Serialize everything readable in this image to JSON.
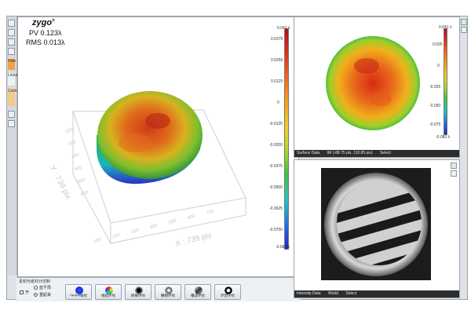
{
  "left_view": {
    "logo": "zygo",
    "pv_label": "PV 0.123λ",
    "rms_label": "RMS 0.013λ",
    "scale_labels": [
      "0.041 λ",
      "0.0375",
      "0.0250",
      "0.0125",
      "0",
      "-0.0125",
      "-0.0250",
      "-0.0375",
      "-0.0500",
      "-0.0625",
      "-0.0750",
      "-0.082 λ"
    ],
    "x_axis_label": "X : 739 pix",
    "y_axis_label": "Y : 739 pix",
    "x_ticks": [
      "100",
      "200",
      "300",
      "400",
      "500",
      "600",
      "700"
    ],
    "y_ticks": [
      "100",
      "200",
      "300",
      "400",
      "500",
      "600"
    ]
  },
  "surface_view": {
    "scale_labels": [
      "0.041 λ",
      "0.025",
      "0",
      "-0.025",
      "-0.050",
      "-0.075",
      "-0.082 λ"
    ],
    "status": {
      "name": "Surface Data",
      "coords": "Wi (-88.75 pix, 110.85 pix)",
      "mode": "Select"
    }
  },
  "intensity_view": {
    "status": {
      "name": "Intensity Data",
      "world": "World",
      "mode": "Select"
    }
  },
  "controls": {
    "title": "素积光纸材计控制",
    "checkbox_label": "开",
    "radio_options": [
      "蓝千周",
      "重起来"
    ],
    "buttons": [
      "*ΨΨΨ样纹",
      "线结环纹",
      "刷果环纹",
      "撒数环纹",
      "槽波环纹",
      "环塑环纹"
    ]
  },
  "toolstrip": {
    "items": [
      "Hide",
      "Linear",
      "Contour"
    ]
  },
  "colors": {
    "status_bar": "#2d2d2d",
    "scale_top": "#b01010",
    "scale_bottom": "#2a1ecc"
  }
}
